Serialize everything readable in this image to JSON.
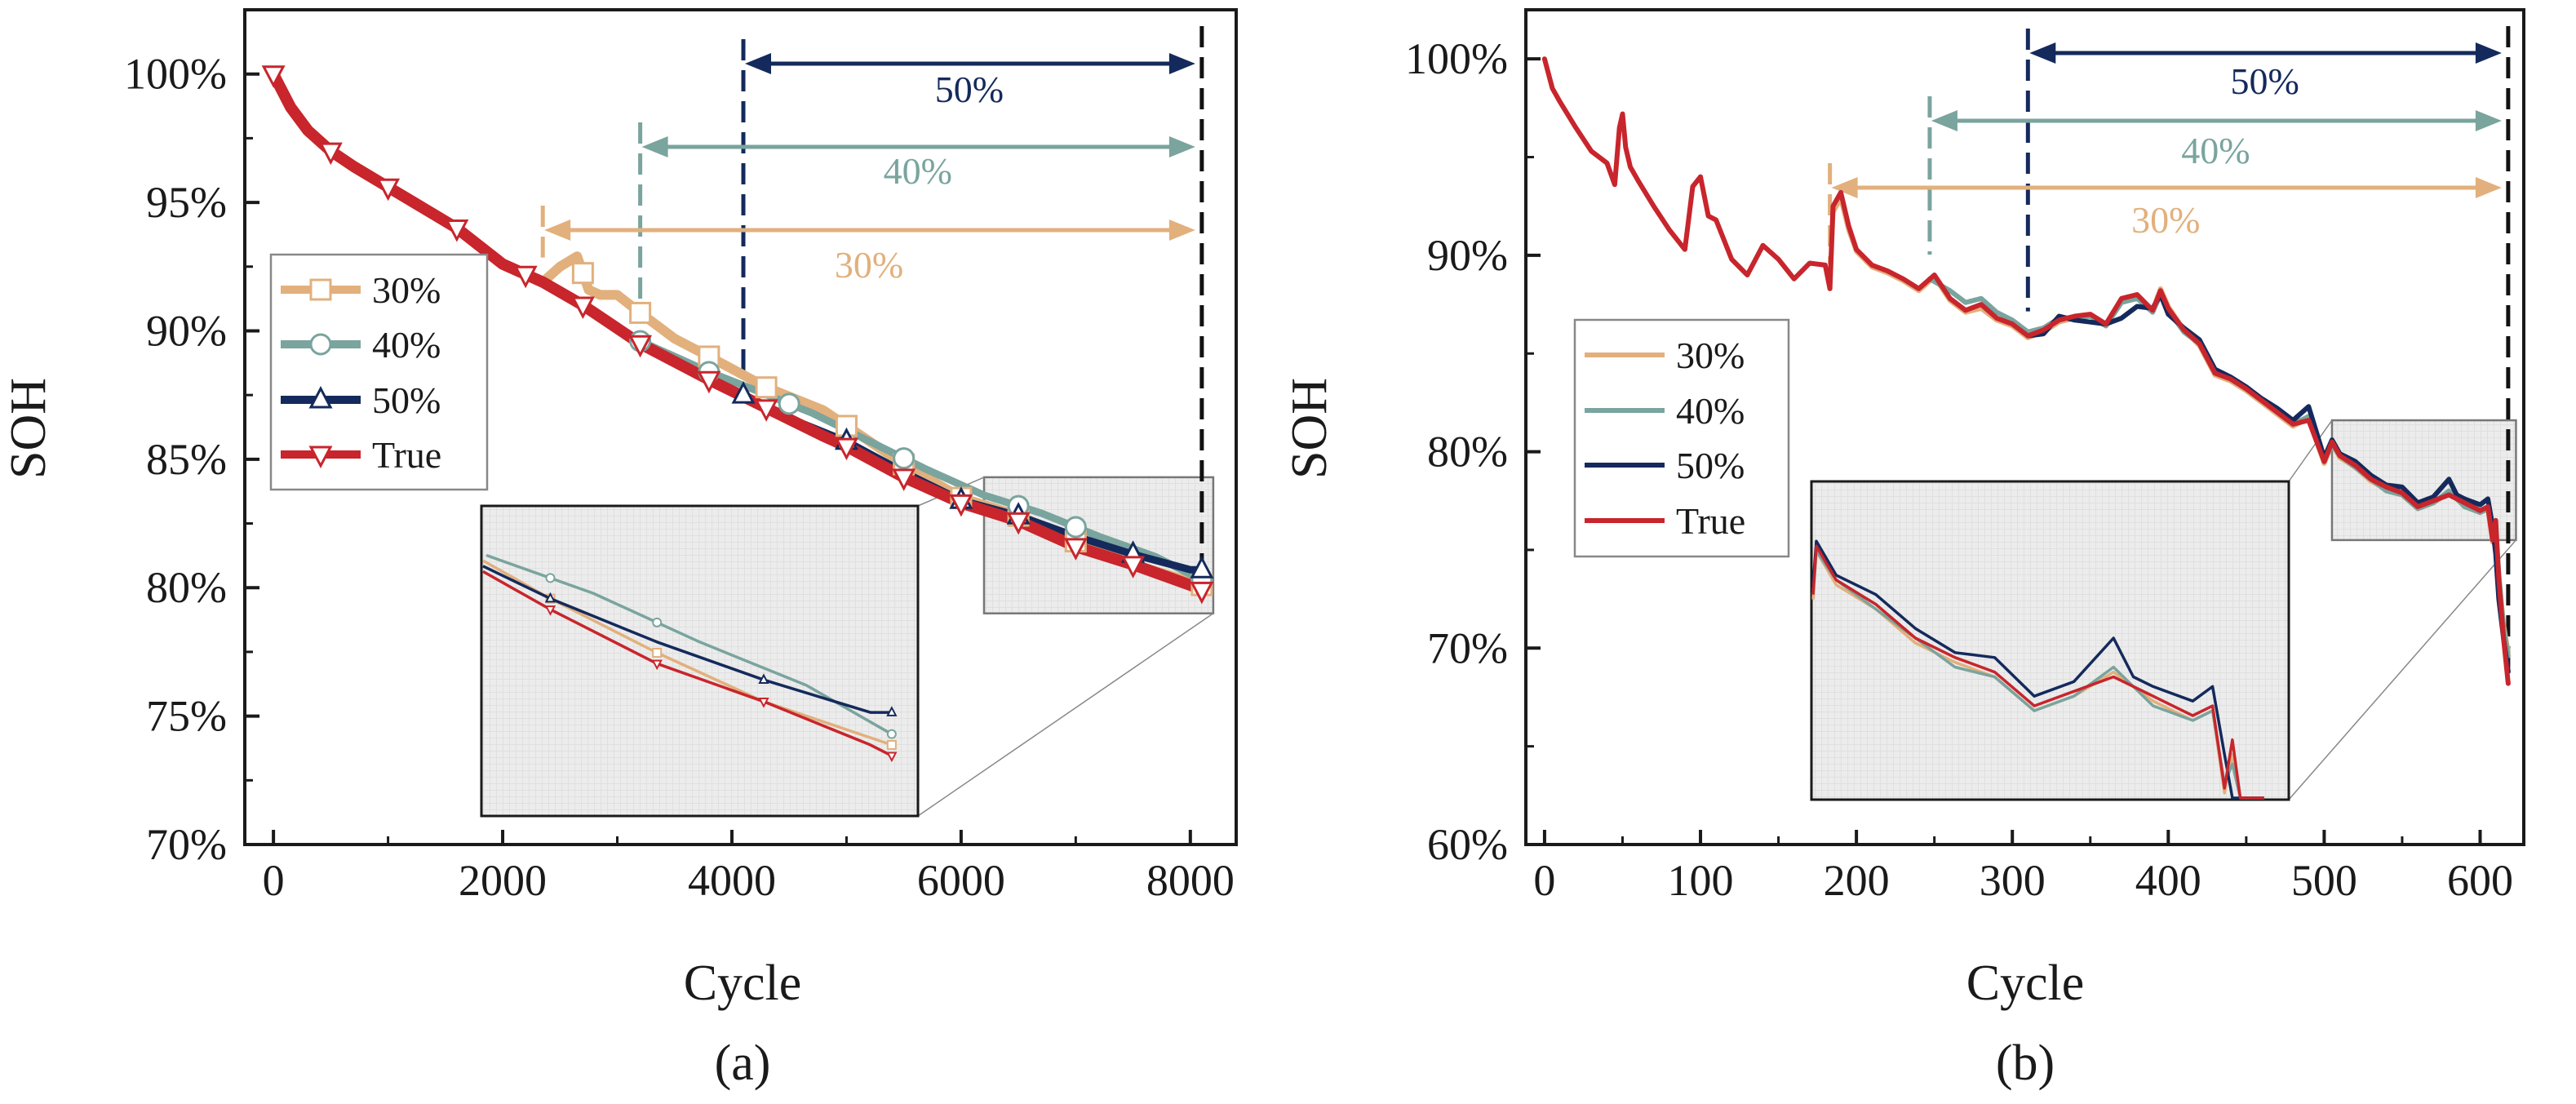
{
  "colors": {
    "s30": "#e2b07c",
    "s40": "#7aa49e",
    "s50": "#142a5c",
    "true": "#c8252c",
    "zoom": "#e7e7e7"
  },
  "chart_data": [
    {
      "id": "a",
      "type": "line",
      "panel_label": "(a)",
      "xlabel": "Cycle",
      "ylabel": "SOH",
      "xlim": [
        -250,
        8400
      ],
      "ylim": [
        70,
        102.5
      ],
      "xticks": [
        0,
        2000,
        4000,
        6000,
        8000
      ],
      "xtick_labels": [
        "0",
        "2000",
        "4000",
        "6000",
        "8000"
      ],
      "yticks": [
        70,
        75,
        80,
        85,
        90,
        95,
        100
      ],
      "ytick_labels": [
        "70%",
        "75%",
        "80%",
        "85%",
        "90%",
        "95%",
        "100%"
      ],
      "legend": [
        "30%",
        "40%",
        "50%",
        "True"
      ],
      "spans": [
        {
          "label": "50%",
          "start": 4100,
          "end": 8100
        },
        {
          "label": "40%",
          "start": 3200,
          "end": 8100
        },
        {
          "label": "30%",
          "start": 2350,
          "end": 8100
        }
      ],
      "zoom": {
        "x0": 6200,
        "x1": 8200,
        "y0": 79,
        "y1": 84.3
      },
      "series": [
        {
          "name": "True",
          "key": "true",
          "marker": "down",
          "start": 0,
          "x": [
            0,
            150,
            300,
            500,
            700,
            1000,
            1300,
            1600,
            2000,
            2350,
            2700,
            3200,
            3800,
            4300,
            4800,
            5000,
            5500,
            6000,
            6500,
            7000,
            7500,
            8000,
            8100
          ],
          "y": [
            100,
            98.7,
            97.8,
            97.0,
            96.4,
            95.6,
            94.8,
            94.0,
            92.6,
            91.9,
            91.0,
            89.5,
            88.1,
            87.0,
            85.9,
            85.5,
            84.3,
            83.3,
            82.6,
            81.6,
            80.9,
            80.1,
            79.9
          ],
          "mx": [
            0,
            500,
            1000,
            1600,
            2200,
            2700,
            3200,
            3800,
            4300,
            5000,
            5500,
            6000,
            6500,
            7000,
            7500,
            8100
          ]
        },
        {
          "name": "50%",
          "key": "s50",
          "marker": "up",
          "start": 4100,
          "x": [
            4100,
            4500,
            5000,
            5500,
            6000,
            6500,
            7000,
            7500,
            8000,
            8100
          ],
          "y": [
            87.5,
            86.6,
            85.7,
            84.5,
            83.4,
            82.8,
            82.0,
            81.3,
            80.7,
            80.7
          ],
          "mx": [
            4100,
            5000,
            6000,
            6500,
            7500,
            8100
          ]
        },
        {
          "name": "40%",
          "key": "s40",
          "marker": "circle",
          "start": 3200,
          "x": [
            3200,
            3500,
            3800,
            4200,
            4700,
            5200,
            5700,
            6200,
            6700,
            7200,
            7700,
            8100
          ],
          "y": [
            89.6,
            89.0,
            88.4,
            87.7,
            86.8,
            85.7,
            84.6,
            83.6,
            82.9,
            82.0,
            81.2,
            80.3
          ],
          "mx": [
            3200,
            3800,
            4500,
            5500,
            6500,
            7000,
            8100
          ]
        },
        {
          "name": "30%",
          "key": "s30",
          "marker": "square",
          "start": 2350,
          "x": [
            2350,
            2500,
            2650,
            2750,
            2850,
            3000,
            3200,
            3500,
            3800,
            4300,
            4800,
            5000,
            5500,
            6000,
            6500,
            7000,
            7500,
            8100
          ],
          "y": [
            91.9,
            92.5,
            92.9,
            91.6,
            91.4,
            91.4,
            90.7,
            89.7,
            89.0,
            87.8,
            86.9,
            86.3,
            84.8,
            83.5,
            82.8,
            81.8,
            80.9,
            80.1
          ],
          "mx": [
            2700,
            3200,
            3800,
            4300,
            5000,
            5500,
            6000,
            6500,
            7000,
            8100
          ]
        }
      ]
    },
    {
      "id": "b",
      "type": "line",
      "panel_label": "(b)",
      "xlabel": "Cycle",
      "ylabel": "SOH",
      "xlim": [
        -12,
        628
      ],
      "ylim": [
        60,
        102.5
      ],
      "xticks": [
        0,
        100,
        200,
        300,
        400,
        500,
        600
      ],
      "xtick_labels": [
        "0",
        "100",
        "200",
        "300",
        "400",
        "500",
        "600"
      ],
      "yticks": [
        60,
        70,
        80,
        90,
        100
      ],
      "ytick_labels": [
        "60%",
        "70%",
        "80%",
        "90%",
        "100%"
      ],
      "legend": [
        "30%",
        "40%",
        "50%",
        "True"
      ],
      "spans": [
        {
          "label": "50%",
          "start": 310,
          "end": 618
        },
        {
          "label": "40%",
          "start": 247,
          "end": 618
        },
        {
          "label": "30%",
          "start": 183,
          "end": 618
        }
      ],
      "zoom": {
        "x0": 505,
        "x1": 623,
        "y0": 75.5,
        "y1": 81.6
      },
      "series": [
        {
          "name": "True",
          "key": "true",
          "start": 0,
          "x": [
            0,
            5,
            10,
            20,
            30,
            40,
            45,
            48,
            50,
            52,
            55,
            60,
            70,
            80,
            90,
            95,
            100,
            105,
            110,
            120,
            130,
            140,
            150,
            160,
            170,
            180,
            183,
            185,
            190,
            195,
            200,
            210,
            220,
            230,
            240,
            250,
            260,
            270,
            280,
            290,
            300,
            310,
            320,
            330,
            340,
            350,
            360,
            370,
            380,
            390,
            395,
            400,
            410,
            420,
            430,
            440,
            450,
            460,
            470,
            480,
            490,
            500,
            505,
            510,
            520,
            530,
            540,
            550,
            560,
            570,
            580,
            590,
            600,
            605,
            608,
            610,
            612,
            615,
            618
          ],
          "y": [
            100,
            98.5,
            97.8,
            96.5,
            95.3,
            94.7,
            93.6,
            96.5,
            97.2,
            95.5,
            94.5,
            93.8,
            92.5,
            91.3,
            90.3,
            93.5,
            94.0,
            92.0,
            91.8,
            89.8,
            89.0,
            90.5,
            89.8,
            88.8,
            89.6,
            89.5,
            88.3,
            92.5,
            93.2,
            91.5,
            90.3,
            89.5,
            89.2,
            88.8,
            88.3,
            89.0,
            87.8,
            87.2,
            87.5,
            86.8,
            86.5,
            85.9,
            86.2,
            86.7,
            86.9,
            87.0,
            86.5,
            87.8,
            88.0,
            87.2,
            88.2,
            87.3,
            86.2,
            85.5,
            84.0,
            83.7,
            83.2,
            82.6,
            82.0,
            81.4,
            81.6,
            79.5,
            80.5,
            79.8,
            79.3,
            78.6,
            78.2,
            77.9,
            77.2,
            77.5,
            77.8,
            77.4,
            77.0,
            77.2,
            75.5,
            76.5,
            73.5,
            70.5,
            68.2
          ]
        },
        {
          "name": "50%",
          "key": "s50",
          "start": 310,
          "x": [
            310,
            320,
            330,
            340,
            350,
            360,
            370,
            380,
            390,
            395,
            400,
            410,
            420,
            430,
            440,
            450,
            460,
            470,
            480,
            490,
            500,
            505,
            510,
            520,
            530,
            540,
            550,
            560,
            570,
            580,
            585,
            590,
            600,
            605,
            608,
            610,
            612,
            615,
            618
          ],
          "y": [
            85.9,
            86.0,
            86.9,
            86.7,
            86.6,
            86.5,
            86.8,
            87.4,
            87.3,
            88.0,
            87.0,
            86.3,
            85.7,
            84.2,
            83.8,
            83.3,
            82.7,
            82.2,
            81.6,
            82.3,
            79.7,
            80.6,
            79.9,
            79.5,
            78.8,
            78.3,
            78.2,
            77.4,
            77.7,
            78.6,
            77.8,
            77.6,
            77.3,
            77.6,
            76.2,
            74.8,
            72.5,
            70.5,
            68.8
          ]
        },
        {
          "name": "40%",
          "key": "s40",
          "start": 247,
          "x": [
            247,
            260,
            270,
            280,
            290,
            300,
            310,
            320,
            330,
            340,
            350,
            360,
            370,
            380,
            390,
            395,
            400,
            410,
            420,
            430,
            440,
            450,
            460,
            470,
            480,
            490,
            500,
            505,
            510,
            520,
            530,
            540,
            550,
            560,
            570,
            580,
            590,
            600,
            605,
            608,
            610,
            612,
            615,
            618
          ],
          "y": [
            88.8,
            88.2,
            87.6,
            87.8,
            87.1,
            86.7,
            86.1,
            86.3,
            86.8,
            86.8,
            86.9,
            86.4,
            87.6,
            87.8,
            87.1,
            88.0,
            87.2,
            86.1,
            85.5,
            84.0,
            83.7,
            83.2,
            82.6,
            82.0,
            81.4,
            81.8,
            79.5,
            80.4,
            79.8,
            79.2,
            78.6,
            78.0,
            77.8,
            77.1,
            77.4,
            78.0,
            77.2,
            76.9,
            77.1,
            75.6,
            76.0,
            73.8,
            71.0,
            69.6
          ]
        },
        {
          "name": "30%",
          "key": "s30",
          "start": 183,
          "x": [
            183,
            185,
            190,
            195,
            200,
            210,
            220,
            230,
            240,
            250,
            260,
            270,
            280,
            290,
            300,
            310,
            320,
            330,
            340,
            350,
            360,
            370,
            380,
            390,
            395,
            400,
            410,
            420,
            430,
            440,
            450,
            460,
            470,
            480,
            490,
            500,
            505,
            510,
            520,
            530,
            540,
            550,
            560,
            570,
            580,
            590,
            600,
            605,
            608,
            610,
            612,
            615,
            618
          ],
          "y": [
            88.3,
            92.2,
            92.9,
            91.3,
            90.2,
            89.4,
            89.1,
            88.7,
            88.2,
            88.9,
            87.7,
            87.1,
            87.3,
            86.7,
            86.4,
            85.8,
            86.1,
            86.6,
            86.8,
            86.9,
            86.4,
            87.7,
            87.9,
            87.2,
            88.3,
            87.4,
            86.2,
            85.4,
            83.9,
            83.6,
            83.1,
            82.5,
            81.9,
            81.3,
            81.7,
            79.4,
            80.4,
            79.7,
            79.2,
            78.5,
            78.1,
            77.8,
            77.1,
            77.4,
            77.9,
            77.3,
            76.9,
            77.1,
            75.4,
            76.2,
            73.6,
            71.2,
            69.8
          ]
        }
      ]
    }
  ]
}
